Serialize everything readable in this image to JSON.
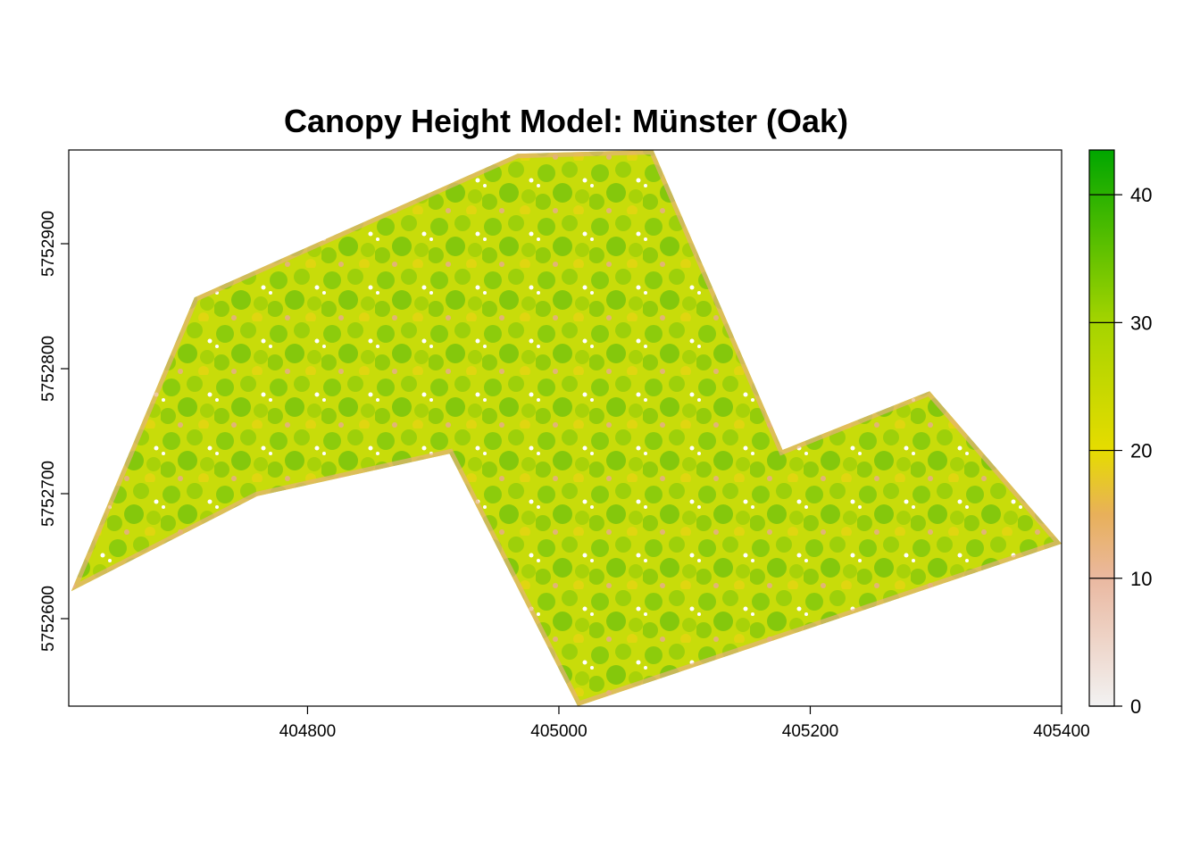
{
  "chart_data": {
    "type": "heatmap",
    "title": "Canopy Height Model: Münster (Oak)",
    "xlabel": "",
    "ylabel": "",
    "xlim": [
      404610,
      405400
    ],
    "ylim": [
      5752530,
      5752975
    ],
    "x_ticks": [
      404800,
      405000,
      405200,
      405400
    ],
    "y_ticks": [
      5752600,
      5752700,
      5752800,
      5752900
    ],
    "x_tick_labels": [
      "404800",
      "405000",
      "405200",
      "405400"
    ],
    "y_tick_labels": [
      "5752600",
      "5752700",
      "5752800",
      "5752900"
    ],
    "legend": {
      "placement": "right",
      "min": 0,
      "max": 43.5,
      "ticks": [
        0,
        10,
        20,
        30,
        40
      ],
      "tick_labels": [
        "0",
        "10",
        "20",
        "30",
        "40"
      ],
      "colors": [
        {
          "value": 0,
          "color": "#f2f2f2"
        },
        {
          "value": 10,
          "color": "#eab8a0"
        },
        {
          "value": 15,
          "color": "#e8b05a"
        },
        {
          "value": 20,
          "color": "#e6dc00"
        },
        {
          "value": 30,
          "color": "#a5d400"
        },
        {
          "value": 43.5,
          "color": "#00a600"
        }
      ]
    },
    "study_area_outline": [
      [
        404612,
        5752622
      ],
      [
        404710,
        5752857
      ],
      [
        404967,
        5752972
      ],
      [
        405075,
        5752975
      ],
      [
        405178,
        5752735
      ],
      [
        405295,
        5752782
      ],
      [
        405400,
        5752660
      ],
      [
        405015,
        5752530
      ],
      [
        404913,
        5752732
      ],
      [
        404760,
        5752698
      ],
      [
        404612,
        5752622
      ]
    ],
    "grid": false
  }
}
